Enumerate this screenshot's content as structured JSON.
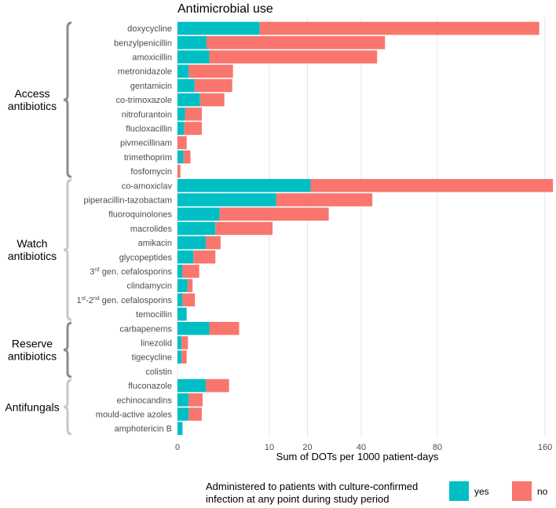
{
  "colors": {
    "yes": "#00BFC4",
    "no": "#F8766D",
    "grid": "#e6e6e6",
    "bracket_dark": "#8c8c8c",
    "bracket_light": "#c8c8c8",
    "text": "#4d4d4d"
  },
  "chart_data": {
    "type": "bar",
    "orientation": "horizontal",
    "stacked": true,
    "title": "Antimicrobial use",
    "xlabel": "Sum of DOTs per 1000 patient-days",
    "ylabel": "",
    "x_ticks": [
      0,
      10,
      20,
      40,
      80,
      160
    ],
    "x_tick_labels": [
      "0",
      "10",
      "20",
      "40",
      "80",
      "160"
    ],
    "xlim": [
      0,
      168
    ],
    "x_scale": "square-root",
    "categories": [
      "doxycycline",
      "benzylpenicillin",
      "amoxicillin",
      "metronidazole",
      "gentamicin",
      "co-trimoxazole",
      "nitrofurantoin",
      "flucloxacillin",
      "pivmecillinam",
      "trimethoprim",
      "fosfomycin",
      "co-amoxiclav",
      "piperacillin-tazobactam",
      "fluoroquinolones",
      "macrolides",
      "amikacin",
      "glycopeptides",
      "3rd gen. cefalosporins",
      "clindamycin",
      "1st-2nd gen. cefalosporins",
      "temocillin",
      "carbapenems",
      "linezolid",
      "tigecycline",
      "colistin",
      "fluconazole",
      "echinocandins",
      "mould-active azoles",
      "amphotericin B"
    ],
    "category_labels": [
      {
        "text": "doxycycline"
      },
      {
        "text": "benzylpenicillin"
      },
      {
        "text": "amoxicillin"
      },
      {
        "text": "metronidazole"
      },
      {
        "text": "gentamicin"
      },
      {
        "text": "co-trimoxazole"
      },
      {
        "text": "nitrofurantoin"
      },
      {
        "text": "flucloxacillin"
      },
      {
        "text": "pivmecillinam"
      },
      {
        "text": "trimethoprim"
      },
      {
        "text": "fosfomycin"
      },
      {
        "text": "co-amoxiclav"
      },
      {
        "text": "piperacillin-tazobactam"
      },
      {
        "text": "fluoroquinolones"
      },
      {
        "text": "macrolides"
      },
      {
        "text": "amikacin"
      },
      {
        "text": "glycopeptides"
      },
      {
        "pre": "3",
        "sup": "rd",
        "post": " gen. cefalosporins"
      },
      {
        "text": "clindamycin"
      },
      {
        "pre": "1",
        "sup": "st",
        "mid": "-2",
        "sup2": "nd",
        "post": " gen. cefalosporins"
      },
      {
        "text": "temocillin"
      },
      {
        "text": "carbapenems"
      },
      {
        "text": "linezolid"
      },
      {
        "text": "tigecycline"
      },
      {
        "text": "colistin"
      },
      {
        "text": "fluconazole"
      },
      {
        "text": "echinocandins"
      },
      {
        "text": "mould-active azoles"
      },
      {
        "text": "amphotericin B"
      }
    ],
    "series": [
      {
        "name": "yes",
        "values": [
          8.0,
          1.0,
          1.2,
          0.15,
          0.35,
          0.6,
          0.07,
          0.05,
          0.0,
          0.04,
          0.0,
          21.0,
          11.5,
          2.1,
          1.7,
          0.95,
          0.3,
          0.03,
          0.12,
          0.03,
          0.1,
          1.2,
          0.02,
          0.02,
          0.0,
          0.95,
          0.15,
          0.15,
          0.03
        ]
      },
      {
        "name": "no",
        "values": [
          147.0,
          50.0,
          46.0,
          3.5,
          3.2,
          2.0,
          0.63,
          0.65,
          0.1,
          0.16,
          0.01,
          146.0,
          33.5,
          25.0,
          9.0,
          1.25,
          1.4,
          0.53,
          0.15,
          0.33,
          0.0,
          3.3,
          0.11,
          0.08,
          0.0,
          2.2,
          0.6,
          0.55,
          0.0
        ]
      }
    ],
    "groups": [
      {
        "label_lines": [
          "Access",
          "antibiotics"
        ],
        "start": 0,
        "end": 10,
        "shade": "dark"
      },
      {
        "label_lines": [
          "Watch",
          "antibiotics"
        ],
        "start": 11,
        "end": 20,
        "shade": "light"
      },
      {
        "label_lines": [
          "Reserve",
          "antibiotics"
        ],
        "start": 21,
        "end": 24,
        "shade": "dark"
      },
      {
        "label_lines": [
          "Antifungals"
        ],
        "start": 25,
        "end": 28,
        "shade": "light"
      }
    ],
    "legend": {
      "title_lines": [
        "Administered to patients with culture-confirmed",
        "infection at any point during study period"
      ],
      "placement": "bottom",
      "items": [
        {
          "key": "yes",
          "label": "yes"
        },
        {
          "key": "no",
          "label": "no"
        }
      ]
    }
  }
}
